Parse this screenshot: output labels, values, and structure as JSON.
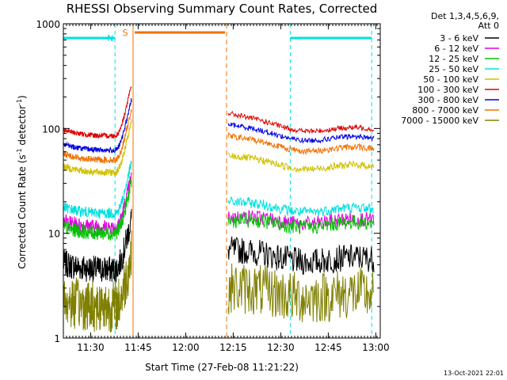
{
  "chart_data": {
    "type": "line",
    "title": "RHESSI Observing Summary Count Rates, Corrected",
    "xlabel": "Start Time (27-Feb-08 11:21:22)",
    "ylabel_main": "Corrected Count Rate (s",
    "ylabel_sup1": "-1",
    "ylabel_mid": " detector",
    "ylabel_sup2": "-1",
    "ylabel_end": ")",
    "x_range_minutes": [
      0,
      100
    ],
    "x_unit": "minutes after 11:21:22",
    "y_scale": "log",
    "ylim": [
      1,
      1000
    ],
    "x_ticks": [
      {
        "label": "11:30",
        "minute": 8.6
      },
      {
        "label": "11:45",
        "minute": 23.6
      },
      {
        "label": "12:00",
        "minute": 38.6
      },
      {
        "label": "12:15",
        "minute": 53.6
      },
      {
        "label": "12:30",
        "minute": 68.6
      },
      {
        "label": "12:45",
        "minute": 83.6
      },
      {
        "label": "13:00",
        "minute": 98.6
      }
    ],
    "y_ticks": [
      {
        "label": "1",
        "value": 1
      },
      {
        "label": "10",
        "value": 10
      },
      {
        "label": "100",
        "value": 100
      },
      {
        "label": "1000",
        "value": 1000
      }
    ],
    "legend_header": [
      "Det 1,3,4,5,6,9,",
      "Att 0"
    ],
    "legend_placement": "right",
    "series": [
      {
        "name": "3 - 6 keV",
        "color": "#000000",
        "pre_level": 4.5,
        "post_start": 7.0,
        "post_end": 5.5,
        "noise": 0.13
      },
      {
        "name": "6 - 12 keV",
        "color": "#e000e0",
        "pre_level": 11.5,
        "post_start": 14.0,
        "post_end": 13.0,
        "noise": 0.07
      },
      {
        "name": "12 - 25 keV",
        "color": "#00c000",
        "pre_level": 10.0,
        "post_start": 13.0,
        "post_end": 12.0,
        "noise": 0.07
      },
      {
        "name": "25 - 50 keV",
        "color": "#00e0e0",
        "pre_level": 15.5,
        "post_start": 20.0,
        "post_end": 16.5,
        "noise": 0.05
      },
      {
        "name": "50 - 100 keV",
        "color": "#d0c000",
        "pre_level": 38.0,
        "post_start": 55.0,
        "post_end": 42.0,
        "noise": 0.035
      },
      {
        "name": "100 - 300 keV",
        "color": "#e00000",
        "pre_level": 85.0,
        "post_start": 140.0,
        "post_end": 95.0,
        "noise": 0.025
      },
      {
        "name": "300 - 800 keV",
        "color": "#0000e0",
        "pre_level": 62.0,
        "post_start": 110.0,
        "post_end": 78.0,
        "noise": 0.025
      },
      {
        "name": "800 - 7000 keV",
        "color": "#f07000",
        "pre_level": 50.0,
        "post_start": 85.0,
        "post_end": 62.0,
        "noise": 0.03
      },
      {
        "name": "7000 - 15000 keV",
        "color": "#808000",
        "pre_level": 2.0,
        "post_start": 3.0,
        "post_end": 2.5,
        "noise": 0.25
      }
    ],
    "data_segments": [
      {
        "label": "pre-gap",
        "start_minute": 0,
        "end_minute": 21.5,
        "peak_at_end": 260
      },
      {
        "label": "post-gap",
        "start_minute": 52.0,
        "end_minute": 98.0
      }
    ],
    "markers": {
      "night": {
        "label": "N",
        "color": "#00e0e0",
        "intervals": [
          [
            0,
            16.3
          ],
          [
            71.6,
            97.3
          ]
        ]
      },
      "saa": {
        "label": "S",
        "color": "#f07000",
        "intervals": [
          [
            22.0,
            51.5
          ]
        ]
      }
    },
    "timestamp": "13-Oct-2021 22:01"
  }
}
